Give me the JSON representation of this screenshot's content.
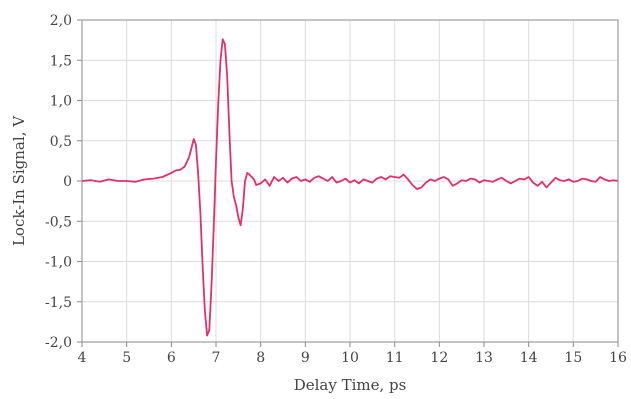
{
  "chart_data": {
    "type": "line",
    "xlabel": "Delay Time, ps",
    "ylabel": "Lock-In Signal, V",
    "xlim": [
      4,
      16
    ],
    "ylim": [
      -2.0,
      2.0
    ],
    "xticks": [
      4,
      5,
      6,
      7,
      8,
      9,
      10,
      11,
      12,
      13,
      14,
      15,
      16
    ],
    "xtick_labels": [
      "4",
      "5",
      "6",
      "7",
      "8",
      "9",
      "10",
      "11",
      "12",
      "13",
      "14",
      "15",
      "16"
    ],
    "yticks": [
      -2.0,
      -1.5,
      -1.0,
      -0.5,
      0,
      0.5,
      1.0,
      1.5,
      2.0
    ],
    "ytick_labels": [
      "-2,0",
      "-1,5",
      "-1,0",
      "-0,5",
      "0",
      "0,5",
      "1,0",
      "1,5",
      "2,0"
    ],
    "grid": true,
    "legend": "none",
    "series": [
      {
        "color": "#e0306e",
        "x": [
          4.0,
          4.2,
          4.4,
          4.6,
          4.8,
          5.0,
          5.2,
          5.4,
          5.6,
          5.8,
          6.0,
          6.1,
          6.2,
          6.3,
          6.4,
          6.5,
          6.55,
          6.6,
          6.65,
          6.7,
          6.75,
          6.8,
          6.85,
          6.9,
          6.95,
          7.0,
          7.05,
          7.1,
          7.15,
          7.2,
          7.25,
          7.3,
          7.35,
          7.4,
          7.45,
          7.5,
          7.55,
          7.6,
          7.65,
          7.7,
          7.75,
          7.8,
          7.85,
          7.9,
          8.0,
          8.1,
          8.2,
          8.3,
          8.4,
          8.5,
          8.6,
          8.7,
          8.8,
          8.9,
          9.0,
          9.1,
          9.2,
          9.3,
          9.4,
          9.5,
          9.6,
          9.7,
          9.8,
          9.9,
          10.0,
          10.1,
          10.2,
          10.3,
          10.4,
          10.5,
          10.6,
          10.7,
          10.8,
          10.9,
          11.0,
          11.1,
          11.2,
          11.3,
          11.4,
          11.5,
          11.6,
          11.7,
          11.8,
          11.9,
          12.0,
          12.1,
          12.2,
          12.3,
          12.4,
          12.5,
          12.6,
          12.7,
          12.8,
          12.9,
          13.0,
          13.1,
          13.2,
          13.3,
          13.4,
          13.5,
          13.6,
          13.7,
          13.8,
          13.9,
          14.0,
          14.1,
          14.2,
          14.3,
          14.4,
          14.5,
          14.6,
          14.7,
          14.8,
          14.9,
          15.0,
          15.1,
          15.2,
          15.3,
          15.4,
          15.5,
          15.6,
          15.7,
          15.8,
          15.9,
          16.0
        ],
        "y": [
          0.0,
          0.01,
          -0.01,
          0.02,
          0.0,
          0.0,
          -0.01,
          0.02,
          0.03,
          0.05,
          0.1,
          0.13,
          0.14,
          0.18,
          0.3,
          0.52,
          0.45,
          0.1,
          -0.4,
          -1.05,
          -1.6,
          -1.92,
          -1.85,
          -1.3,
          -0.55,
          0.25,
          0.95,
          1.5,
          1.76,
          1.7,
          1.3,
          0.6,
          0.0,
          -0.2,
          -0.3,
          -0.45,
          -0.55,
          -0.35,
          0.0,
          0.1,
          0.08,
          0.05,
          0.02,
          -0.05,
          -0.03,
          0.02,
          -0.06,
          0.05,
          0.0,
          0.04,
          -0.02,
          0.03,
          0.05,
          0.0,
          0.02,
          -0.01,
          0.04,
          0.06,
          0.03,
          0.0,
          0.05,
          -0.02,
          0.0,
          0.03,
          -0.02,
          0.01,
          -0.03,
          0.02,
          0.0,
          -0.02,
          0.03,
          0.05,
          0.02,
          0.06,
          0.05,
          0.04,
          0.08,
          0.02,
          -0.05,
          -0.1,
          -0.08,
          -0.02,
          0.02,
          0.0,
          0.03,
          0.05,
          0.02,
          -0.06,
          -0.03,
          0.01,
          0.0,
          0.03,
          0.02,
          -0.02,
          0.01,
          0.0,
          -0.01,
          0.02,
          0.04,
          0.0,
          -0.03,
          0.0,
          0.03,
          0.02,
          0.05,
          -0.02,
          -0.06,
          -0.01,
          -0.08,
          -0.02,
          0.04,
          0.01,
          0.0,
          0.02,
          -0.01,
          0.0,
          0.03,
          0.02,
          0.0,
          -0.01,
          0.05,
          0.02,
          0.0,
          0.01,
          0.0
        ]
      }
    ]
  }
}
